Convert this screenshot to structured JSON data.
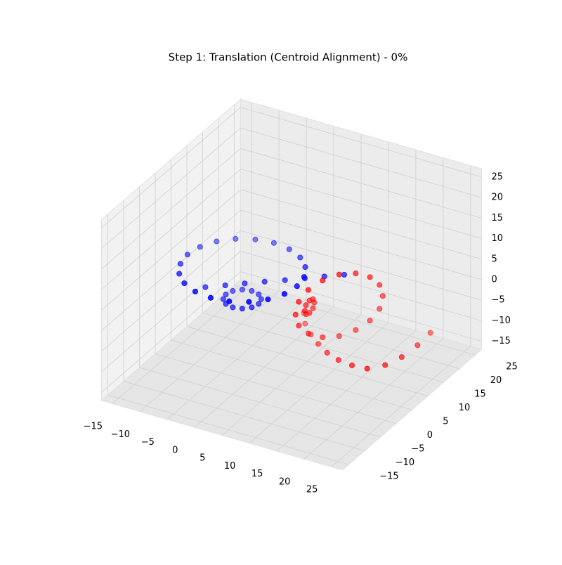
{
  "chart_data": {
    "type": "scatter3d",
    "title": "Step 1: Translation (Centroid Alignment) - 0%",
    "xlim": [
      -17,
      27
    ],
    "ylim": [
      -17,
      27
    ],
    "zlim": [
      -17,
      27
    ],
    "xticks": [
      {
        "value": -15,
        "label": "−15"
      },
      {
        "value": -10,
        "label": "−10"
      },
      {
        "value": -5,
        "label": "−5"
      },
      0,
      5,
      10,
      15,
      20,
      25
    ],
    "yticks": [
      {
        "value": -15,
        "label": "−15"
      },
      {
        "value": -10,
        "label": "−10"
      },
      {
        "value": -5,
        "label": "−5"
      },
      0,
      5,
      10,
      15,
      20,
      25
    ],
    "zticks": [
      {
        "value": -15,
        "label": "−15"
      },
      {
        "value": -10,
        "label": "−10"
      },
      {
        "value": -5,
        "label": "−5"
      },
      0,
      5,
      10,
      15,
      20,
      25
    ],
    "grid": true,
    "series": [
      {
        "color": "#0000ff",
        "x": [
          6,
          5.5,
          4.1,
          1.9,
          -0.9,
          -4,
          -7.1,
          -9.9,
          -12.1,
          -13.5,
          -14,
          -13.5,
          -12.1,
          -9.9,
          -7.1,
          -4,
          -0.9,
          1.9,
          4.1,
          5.5,
          -1,
          -1.4,
          -2.5,
          -4,
          -5.5,
          -6.6,
          -7,
          -6.6,
          -5.5,
          -4,
          -2.5,
          -1.4,
          -9,
          -6.3,
          -3.6,
          -0.9,
          1.9,
          4.6,
          7.3,
          10
        ],
        "y": [
          5,
          8.1,
          10.9,
          13.1,
          14.5,
          15,
          14.5,
          13.1,
          10.9,
          8.1,
          5,
          1.9,
          -0.9,
          -3.1,
          -4.5,
          -5,
          -4.5,
          -3.1,
          -0.9,
          1.9,
          5,
          6.5,
          7.6,
          8,
          7.6,
          6.5,
          5,
          3.5,
          2.4,
          2,
          2.4,
          3.5,
          2,
          3.6,
          5.1,
          6.7,
          8.3,
          9.9,
          11.4,
          13
        ],
        "z": [
          5,
          5,
          5,
          5,
          5,
          5,
          5,
          5,
          5,
          5,
          5,
          5,
          5,
          5,
          5,
          5,
          5,
          5,
          5,
          5,
          -2,
          -2,
          -2,
          -2,
          -2,
          -2,
          -2,
          -2,
          -2,
          -2,
          -2,
          -2,
          1,
          1.4,
          1.9,
          2.3,
          2.7,
          3.1,
          3.6,
          4
        ]
      },
      {
        "color": "#ff0000",
        "x": [
          14.1,
          13.8,
          12.8,
          11.3,
          9.6,
          7.9,
          6.4,
          5.4,
          5.1,
          5.4,
          6.4,
          7.9,
          9.6,
          11.3,
          12.8,
          13.8,
          5.1,
          5.1,
          5.1,
          5.1,
          5.1,
          5.1,
          5.1,
          5.1,
          0.1,
          2,
          4.5,
          7,
          9.6,
          12.3,
          15,
          17.6,
          19.5,
          20.5,
          20.8,
          20.6
        ],
        "y": [
          18.1,
          17.6,
          16.3,
          14.4,
          12.1,
          9.8,
          7.9,
          6.6,
          6.1,
          6.6,
          7.9,
          9.8,
          12.1,
          14.4,
          16.3,
          17.6,
          12,
          11.6,
          10.5,
          9.4,
          9,
          9.4,
          10.5,
          11.6,
          17.3,
          14.5,
          12,
          10,
          8.3,
          7.2,
          6.8,
          7.1,
          9.5,
          13,
          17.5,
          21.9
        ],
        "z": [
          -3,
          -0.1,
          2.3,
          3.9,
          4.5,
          3.9,
          2.3,
          -0.1,
          -3,
          -5.9,
          -8.3,
          -9.9,
          -10.5,
          -9.9,
          -8.3,
          -5.9,
          -4,
          -2.9,
          -2.5,
          -2.9,
          -4,
          -5.1,
          -5.5,
          -5.1,
          -12,
          -12,
          -12,
          -12,
          -12,
          -12,
          -12,
          -12,
          -12,
          -12,
          -12,
          -12
        ]
      }
    ]
  }
}
